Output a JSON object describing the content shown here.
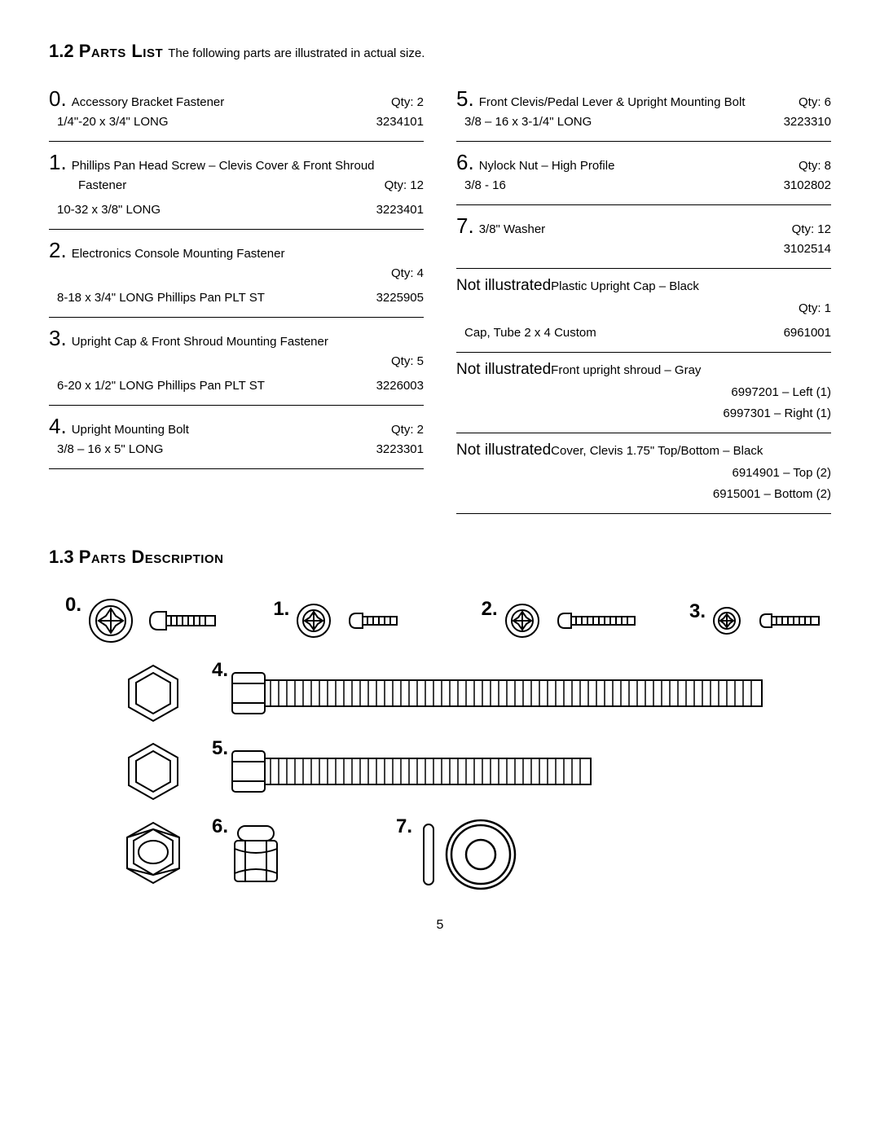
{
  "section12": {
    "num": "1.2",
    "title": "Parts List",
    "tail": "The following parts are illustrated in actual size."
  },
  "section13": {
    "num": "1.3",
    "title": "Parts Description"
  },
  "left": [
    {
      "n": "0.",
      "name": "Accessory Bracket Fastener",
      "qty": "Qty: 2",
      "spec": "1/4\"-20 x 3/4\" LONG",
      "code": "3234101"
    },
    {
      "n": "1.",
      "name": "Phillips Pan Head Screw – Clevis Cover & Front Shroud",
      "name2": "Fastener",
      "qty": "Qty: 12",
      "spec": "10-32 x 3/8\" LONG",
      "code": "3223401"
    },
    {
      "n": "2.",
      "name": "Electronics Console Mounting Fastener",
      "qty": "Qty: 4",
      "spec": "8-18 x 3/4\" LONG Phillips Pan PLT ST",
      "code": "3225905"
    },
    {
      "n": "3.",
      "name": "Upright Cap & Front Shroud Mounting Fastener",
      "qty": "Qty: 5",
      "spec": "6-20 x 1/2\" LONG Phillips Pan PLT ST",
      "code": "3226003"
    },
    {
      "n": "4.",
      "name": "Upright Mounting Bolt",
      "qty": "Qty: 2",
      "spec": "3/8 – 16 x 5\" LONG",
      "code": "3223301"
    }
  ],
  "right": [
    {
      "n": "5.",
      "name": "Front Clevis/Pedal Lever & Upright Mounting Bolt",
      "qty": "Qty: 6",
      "spec": "3/8 – 16 x 3-1/4\" LONG",
      "code": "3223310"
    },
    {
      "n": "6.",
      "name": "Nylock Nut – High Profile",
      "qty": "Qty: 8",
      "spec": "3/8 - 16",
      "code": "3102802"
    },
    {
      "n": "7.",
      "name": "3/8\" Washer",
      "qty": "Qty: 12",
      "spec": "",
      "code": "3102514"
    },
    {
      "ni": "Not illustrated",
      "name": "Plastic Upright Cap – Black",
      "qty": "Qty: 1",
      "spec": "Cap, Tube 2 x 4 Custom",
      "code": "6961001"
    },
    {
      "ni": "Not illustrated",
      "name": "Front upright shroud – Gray",
      "extras": [
        "6997201 – Left (1)",
        "6997301 – Right (1)"
      ]
    },
    {
      "ni": "Not illustrated",
      "name": "Cover, Clevis 1.75\" Top/Bottom – Black",
      "extras": [
        "6914901 – Top (2)",
        "6915001 – Bottom (2)"
      ]
    }
  ],
  "diagramLabels": {
    "d0": "0.",
    "d1": "1.",
    "d2": "2.",
    "d3": "3.",
    "d4": "4.",
    "d5": "5.",
    "d6": "6.",
    "d7": "7."
  },
  "pageNumber": "5",
  "style": {
    "stroke": "#000",
    "fill": "#fff",
    "strokeWidth": 2,
    "fontBody": 15,
    "fontPartNum": 26,
    "fontHeading": 22,
    "fontNotIll": 19,
    "fontDiagLabel": 24
  }
}
